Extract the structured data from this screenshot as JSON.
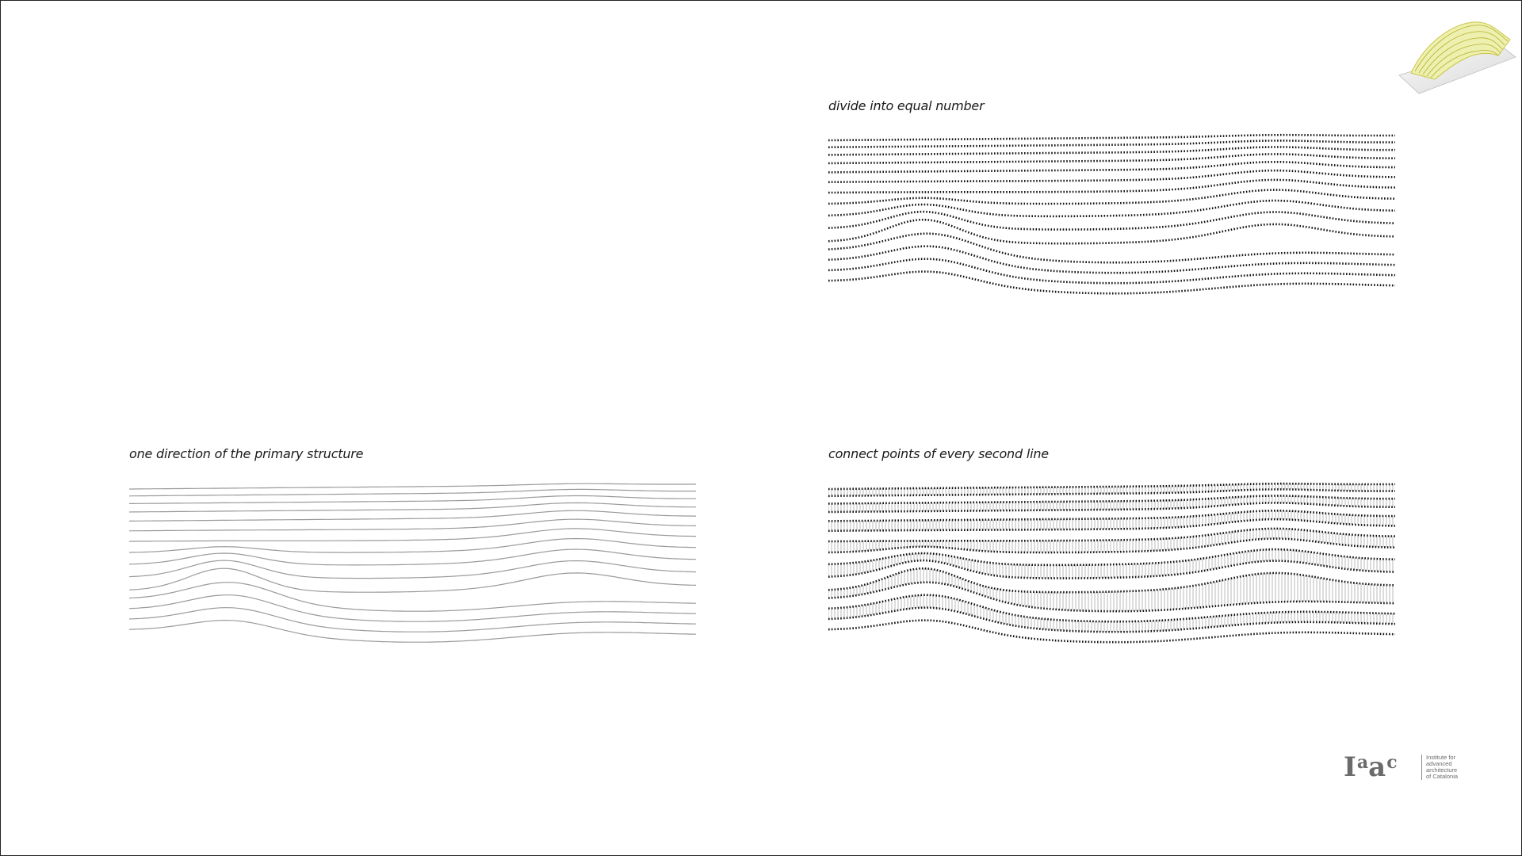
{
  "captions": {
    "top_right": "divide into equal number",
    "bottom_left": "one direction of the primary structure",
    "bottom_right": "connect points of every second line"
  },
  "logo": {
    "mark_letters": [
      "I",
      "a",
      "a",
      "c"
    ],
    "text_lines": [
      "Institute for",
      "advanced",
      "architecture",
      "of Catalonia"
    ]
  },
  "colors": {
    "background": "#ffffff",
    "dots": "#111111",
    "thin_lines": "#9a9a9a",
    "logo_gray": "#6b6b6b",
    "model_yellow": "#d6d24a"
  },
  "icons": {
    "thumbnail": "3d-model-thumbnail-icon",
    "logo": "iaac-logo-icon"
  }
}
